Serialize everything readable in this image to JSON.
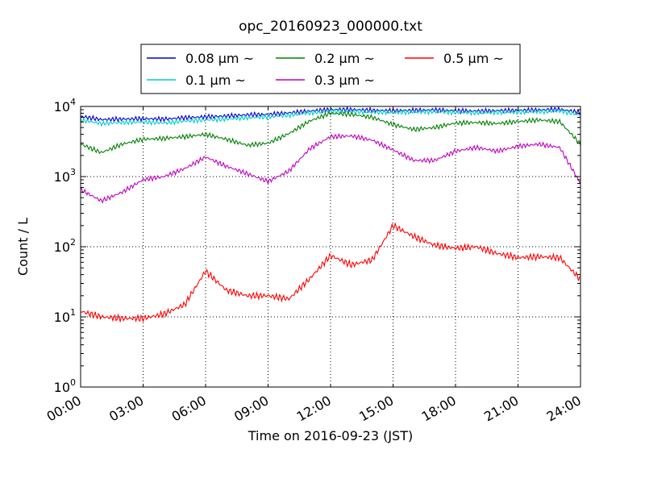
{
  "chart_data": {
    "type": "line",
    "title": "opc_20160923_000000.txt",
    "xlabel": "Time on 2016-09-23 (JST)",
    "ylabel": "Count / L",
    "yscale": "log",
    "ylim": [
      1,
      10000
    ],
    "xlim_hours": [
      0,
      24
    ],
    "grid": true,
    "legend_location": "top-center",
    "x_ticks": [
      "00:00",
      "03:00",
      "06:00",
      "09:00",
      "12:00",
      "15:00",
      "18:00",
      "21:00",
      "24:00"
    ],
    "y_ticks": [
      {
        "base": "10",
        "exp": "0"
      },
      {
        "base": "10",
        "exp": "1"
      },
      {
        "base": "10",
        "exp": "2"
      },
      {
        "base": "10",
        "exp": "3"
      },
      {
        "base": "10",
        "exp": "4"
      }
    ],
    "x_hours": [
      0,
      1,
      2,
      3,
      4,
      5,
      6,
      7,
      8,
      9,
      10,
      11,
      12,
      13,
      14,
      15,
      16,
      17,
      18,
      19,
      20,
      21,
      22,
      23,
      24
    ],
    "series": [
      {
        "name": "0.08 μm ~",
        "color": "#0000cc",
        "values": [
          7200,
          6500,
          6600,
          6700,
          6600,
          6900,
          7100,
          7300,
          7600,
          7700,
          8100,
          8600,
          9000,
          9000,
          8800,
          8700,
          8800,
          8900,
          8700,
          8600,
          8700,
          8800,
          8900,
          9100,
          8200
        ]
      },
      {
        "name": "0.1 μm ~",
        "color": "#00cccc",
        "values": [
          6400,
          5700,
          5900,
          6000,
          5800,
          6200,
          6400,
          6600,
          6900,
          7100,
          7500,
          8100,
          8500,
          8400,
          8300,
          8200,
          8300,
          8400,
          8200,
          8100,
          8200,
          8300,
          8400,
          8600,
          7600
        ]
      },
      {
        "name": "0.2 μm ~",
        "color": "#008000",
        "values": [
          2900,
          2200,
          2900,
          3400,
          3500,
          3700,
          4000,
          3400,
          2800,
          3000,
          4100,
          6200,
          8000,
          7700,
          7000,
          5500,
          4700,
          5000,
          5800,
          5900,
          5700,
          6100,
          6400,
          6100,
          2900
        ]
      },
      {
        "name": "0.3 μm ~",
        "color": "#bf00bf",
        "values": [
          650,
          450,
          600,
          900,
          1000,
          1300,
          1900,
          1400,
          1100,
          850,
          1200,
          2500,
          3700,
          3800,
          3300,
          2400,
          1700,
          1700,
          2300,
          2600,
          2300,
          2700,
          2900,
          2600,
          800
        ]
      },
      {
        "name": "0.5 μm ~",
        "color": "#ff0000",
        "values": [
          12,
          10,
          9.5,
          9.5,
          11,
          15,
          45,
          24,
          20,
          20,
          18,
          35,
          75,
          55,
          65,
          200,
          140,
          105,
          95,
          100,
          80,
          70,
          72,
          70,
          34
        ]
      }
    ]
  }
}
